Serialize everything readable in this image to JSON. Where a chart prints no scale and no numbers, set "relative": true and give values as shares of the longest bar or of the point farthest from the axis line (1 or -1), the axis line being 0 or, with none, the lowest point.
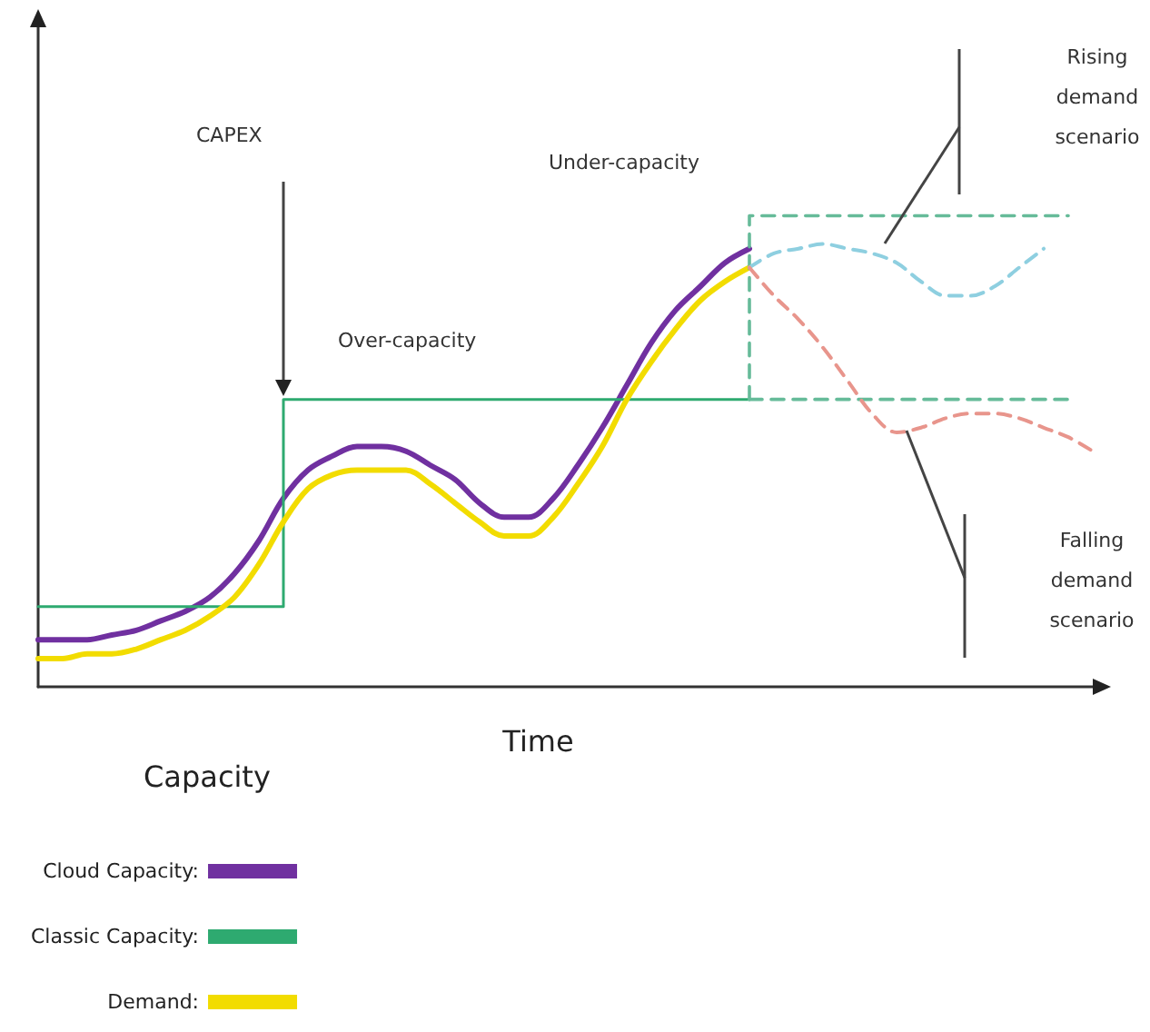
{
  "chart_data": {
    "type": "line",
    "xlabel": "Time",
    "relative": true,
    "legend": "bottom left",
    "categories": [
      null,
      null,
      null,
      null,
      null,
      null,
      null,
      null,
      null,
      null,
      null,
      null,
      null,
      null,
      null,
      null,
      null,
      null,
      null,
      null,
      null,
      null,
      null,
      null,
      null,
      null,
      null,
      null,
      null,
      null,
      null,
      null,
      null,
      null,
      null,
      null,
      null,
      null,
      null,
      null,
      null,
      null,
      null,
      null
    ],
    "series": [
      {
        "name": "Cloud Capacity:",
        "color": "#7030a0",
        "values": [
          0.1,
          0.1,
          0.1,
          0.11,
          0.12,
          0.14,
          0.16,
          0.19,
          0.24,
          0.31,
          0.4,
          0.46,
          0.49,
          0.51,
          0.51,
          0.5,
          0.47,
          0.44,
          0.39,
          0.36,
          0.36,
          0.4,
          0.47,
          0.55,
          0.64,
          0.73,
          0.8,
          0.85,
          0.9,
          0.93,
          null,
          null,
          null,
          null,
          null,
          null,
          null,
          null,
          null,
          null,
          null,
          null,
          null,
          null
        ]
      },
      {
        "name": "Classic Capacity:",
        "type": "step",
        "color": "#2eaa70",
        "values": [
          0.17,
          0.17,
          0.17,
          0.17,
          0.17,
          0.17,
          0.17,
          0.17,
          0.17,
          0.17,
          0.17,
          0.61,
          0.61,
          0.61,
          0.61,
          0.61,
          0.61,
          0.61,
          0.61,
          0.61,
          0.61,
          0.61,
          0.61,
          0.61,
          0.61,
          0.61,
          0.61,
          0.61,
          0.61,
          0.61,
          null,
          null,
          null,
          null,
          null,
          null,
          null,
          null,
          null,
          null,
          null,
          null,
          null,
          null
        ]
      },
      {
        "name": "Demand:",
        "color": "#f2dc00",
        "values": [
          0.06,
          0.06,
          0.07,
          0.07,
          0.08,
          0.1,
          0.12,
          0.15,
          0.19,
          0.26,
          0.35,
          0.42,
          0.45,
          0.46,
          0.46,
          0.46,
          0.43,
          0.39,
          0.35,
          0.32,
          0.32,
          0.36,
          0.43,
          0.51,
          0.61,
          0.69,
          0.76,
          0.82,
          0.86,
          0.89,
          null,
          null,
          null,
          null,
          null,
          null,
          null,
          null,
          null,
          null,
          null,
          null,
          null,
          null
        ]
      },
      {
        "type": "step",
        "color": "#66bb99",
        "line_style": "dashed",
        "values": [
          null,
          null,
          null,
          null,
          null,
          null,
          null,
          null,
          null,
          null,
          null,
          null,
          null,
          null,
          null,
          null,
          null,
          null,
          null,
          null,
          null,
          null,
          null,
          null,
          null,
          null,
          null,
          null,
          null,
          0.61,
          1,
          1,
          1,
          1,
          1,
          1,
          1,
          1,
          1,
          1,
          1,
          1,
          1,
          null
        ]
      },
      {
        "type": "step",
        "color": "#66bb99",
        "line_style": "dashed",
        "values": [
          null,
          null,
          null,
          null,
          null,
          null,
          null,
          null,
          null,
          null,
          null,
          null,
          null,
          null,
          null,
          null,
          null,
          null,
          null,
          null,
          null,
          null,
          null,
          null,
          null,
          null,
          null,
          null,
          null,
          0.61,
          0.61,
          0.61,
          0.61,
          0.61,
          0.61,
          0.61,
          0.61,
          0.61,
          0.61,
          0.61,
          0.61,
          0.61,
          0.61,
          null
        ]
      },
      {
        "color": "#8ecfe0",
        "line_style": "dashed",
        "values": [
          null,
          null,
          null,
          null,
          null,
          null,
          null,
          null,
          null,
          null,
          null,
          null,
          null,
          null,
          null,
          null,
          null,
          null,
          null,
          null,
          null,
          null,
          null,
          null,
          null,
          null,
          null,
          null,
          null,
          0.89,
          0.92,
          0.93,
          0.94,
          0.93,
          0.92,
          0.9,
          0.86,
          0.83,
          0.83,
          0.85,
          0.89,
          0.93,
          null,
          null
        ]
      },
      {
        "color": "#e8958c",
        "line_style": "dashed",
        "values": [
          null,
          null,
          null,
          null,
          null,
          null,
          null,
          null,
          null,
          null,
          null,
          null,
          null,
          null,
          null,
          null,
          null,
          null,
          null,
          null,
          null,
          null,
          null,
          null,
          null,
          null,
          null,
          null,
          null,
          0.89,
          0.83,
          0.78,
          0.72,
          0.65,
          0.58,
          0.54,
          0.55,
          0.57,
          0.58,
          0.58,
          0.57,
          0.55,
          0.53,
          0.5
        ]
      }
    ],
    "annotations": [
      "CAPEX",
      "Over-capacity",
      "Under-capacity",
      "Rising demand scenario",
      "Falling demand scenario",
      "Capacity"
    ]
  }
}
